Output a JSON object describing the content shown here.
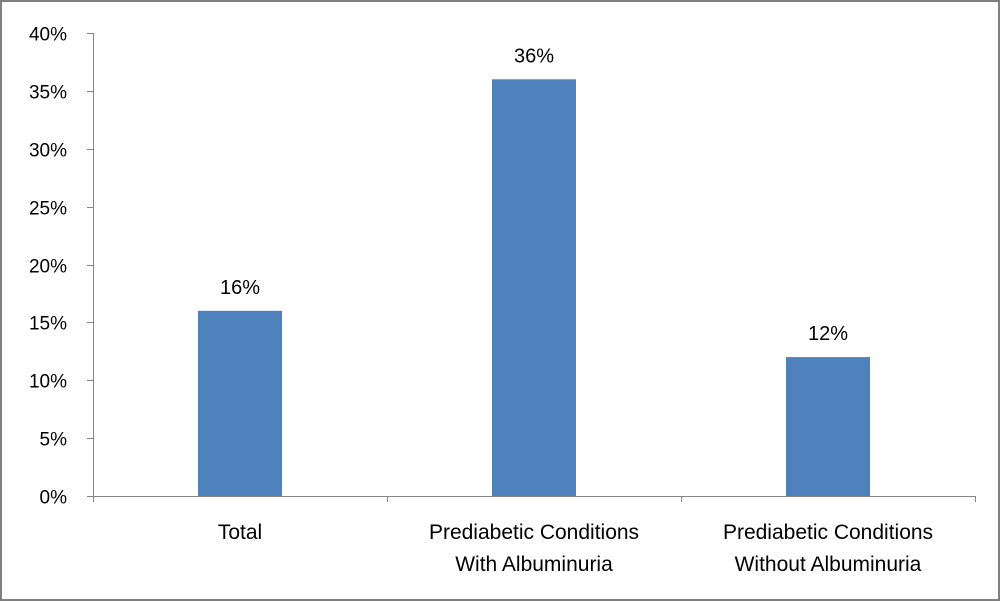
{
  "chart_data": {
    "type": "bar",
    "title": "",
    "xlabel": "",
    "ylabel": "",
    "categories": [
      [
        "Total"
      ],
      [
        "Prediabetic Conditions",
        "With Albuminuria"
      ],
      [
        "Prediabetic Conditions",
        "Without Albuminuria"
      ]
    ],
    "values": [
      16,
      36,
      12
    ],
    "data_labels": [
      "16%",
      "36%",
      "12%"
    ],
    "ylim": [
      0,
      40
    ],
    "yticks": [
      0,
      5,
      10,
      15,
      20,
      25,
      30,
      35,
      40
    ],
    "ytick_labels": [
      "0%",
      "5%",
      "10%",
      "15%",
      "20%",
      "25%",
      "30%",
      "35%",
      "40%"
    ],
    "grid": false,
    "legend": "none",
    "bar_color": "#4f81bd",
    "axis_color": "#868686"
  }
}
